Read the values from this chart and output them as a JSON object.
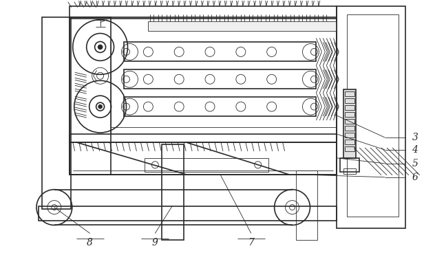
{
  "bg_color": "#ffffff",
  "line_color": "#2a2a2a",
  "lw": 1.2,
  "tlw": 0.6,
  "label_fontsize": 10
}
